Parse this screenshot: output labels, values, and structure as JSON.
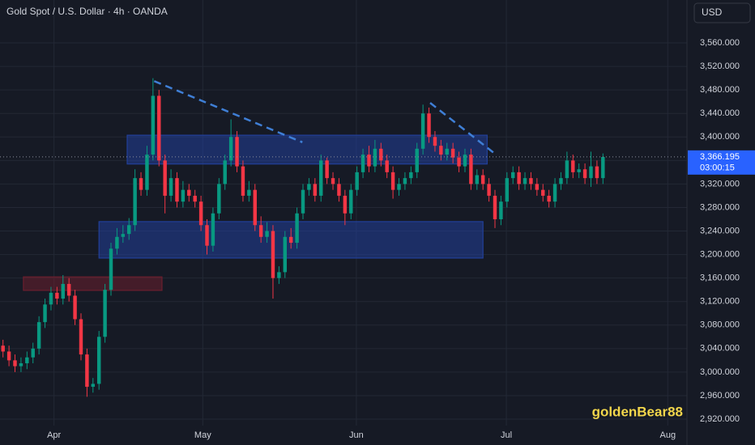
{
  "chart_data": {
    "type": "candlestick",
    "title": "Gold Spot / U.S. Dollar · 4h · OANDA",
    "currency": "USD",
    "watermark": "goldenBear88",
    "open": [
      3045,
      3035,
      3020,
      3010,
      3015,
      3025,
      3040,
      3085,
      3115,
      3135,
      3125,
      3150,
      3130,
      3090,
      3030,
      2975,
      2980,
      3060,
      3140,
      3210,
      3230,
      3235,
      3250,
      3330,
      3310,
      3370,
      3470,
      3360,
      3300,
      3330,
      3290,
      3310,
      3300,
      3290,
      3250,
      3215,
      3270,
      3320,
      3360,
      3400,
      3350,
      3300,
      3310,
      3250,
      3230,
      3240,
      3160,
      3170,
      3230,
      3220,
      3270,
      3310,
      3320,
      3300,
      3360,
      3330,
      3320,
      3300,
      3270,
      3310,
      3340,
      3370,
      3350,
      3380,
      3360,
      3340,
      3310,
      3320,
      3330,
      3340,
      3380,
      3440,
      3400,
      3385,
      3370,
      3380,
      3365,
      3350,
      3370,
      3320,
      3335,
      3320,
      3300,
      3260,
      3290,
      3330,
      3340,
      3320,
      3330,
      3320,
      3310,
      3300,
      3290,
      3320,
      3330,
      3360,
      3340,
      3345,
      3330,
      3350,
      3330
    ],
    "high": [
      3055,
      3045,
      3030,
      3025,
      3035,
      3050,
      3095,
      3125,
      3145,
      3145,
      3165,
      3160,
      3140,
      3100,
      3040,
      2990,
      3070,
      3150,
      3220,
      3245,
      3250,
      3262,
      3345,
      3340,
      3385,
      3500,
      3480,
      3370,
      3345,
      3340,
      3325,
      3320,
      3310,
      3300,
      3260,
      3280,
      3330,
      3370,
      3430,
      3410,
      3360,
      3325,
      3320,
      3265,
      3255,
      3250,
      3180,
      3240,
      3245,
      3280,
      3320,
      3330,
      3330,
      3370,
      3365,
      3340,
      3330,
      3310,
      3320,
      3350,
      3380,
      3385,
      3395,
      3390,
      3370,
      3350,
      3330,
      3340,
      3350,
      3390,
      3455,
      3450,
      3410,
      3395,
      3390,
      3390,
      3375,
      3380,
      3380,
      3345,
      3345,
      3330,
      3310,
      3300,
      3340,
      3350,
      3350,
      3340,
      3340,
      3330,
      3320,
      3310,
      3330,
      3340,
      3375,
      3370,
      3355,
      3355,
      3375,
      3360,
      3372
    ],
    "low": [
      3025,
      3010,
      3000,
      3000,
      3005,
      3015,
      3030,
      3075,
      3105,
      3115,
      3115,
      3120,
      3080,
      3020,
      2958,
      2965,
      2970,
      3050,
      3130,
      3200,
      3220,
      3225,
      3240,
      3300,
      3300,
      3360,
      3350,
      3270,
      3290,
      3280,
      3280,
      3290,
      3280,
      3240,
      3200,
      3205,
      3260,
      3310,
      3350,
      3340,
      3290,
      3290,
      3240,
      3220,
      3220,
      3125,
      3150,
      3160,
      3210,
      3210,
      3260,
      3300,
      3290,
      3290,
      3320,
      3310,
      3290,
      3250,
      3260,
      3300,
      3330,
      3340,
      3340,
      3350,
      3330,
      3295,
      3300,
      3310,
      3320,
      3330,
      3370,
      3390,
      3375,
      3360,
      3360,
      3355,
      3340,
      3340,
      3310,
      3310,
      3310,
      3290,
      3245,
      3250,
      3280,
      3320,
      3310,
      3310,
      3310,
      3300,
      3290,
      3280,
      3280,
      3310,
      3320,
      3330,
      3330,
      3320,
      3315,
      3320,
      3320
    ],
    "close": [
      3035,
      3020,
      3010,
      3015,
      3025,
      3040,
      3085,
      3115,
      3135,
      3125,
      3150,
      3130,
      3090,
      3030,
      2975,
      2980,
      3060,
      3140,
      3210,
      3230,
      3235,
      3250,
      3330,
      3310,
      3370,
      3470,
      3360,
      3300,
      3330,
      3290,
      3310,
      3300,
      3290,
      3250,
      3215,
      3270,
      3320,
      3360,
      3400,
      3350,
      3300,
      3310,
      3250,
      3230,
      3240,
      3160,
      3170,
      3230,
      3220,
      3270,
      3310,
      3320,
      3300,
      3360,
      3330,
      3320,
      3300,
      3270,
      3310,
      3340,
      3370,
      3350,
      3380,
      3360,
      3340,
      3310,
      3320,
      3330,
      3340,
      3380,
      3440,
      3400,
      3385,
      3370,
      3380,
      3365,
      3350,
      3370,
      3320,
      3335,
      3320,
      3300,
      3260,
      3290,
      3330,
      3340,
      3320,
      3330,
      3320,
      3310,
      3300,
      3290,
      3320,
      3330,
      3360,
      3340,
      3345,
      3330,
      3350,
      3330,
      3366
    ],
    "up_color": "#089981",
    "down_color": "#f23645",
    "xlim": [
      -0.5,
      114
    ],
    "xticks": [
      {
        "value": 8.5,
        "label": "Apr"
      },
      {
        "value": 33.3,
        "label": "May"
      },
      {
        "value": 58.9,
        "label": "Jun"
      },
      {
        "value": 83.9,
        "label": "Jul"
      },
      {
        "value": 110.8,
        "label": "Aug"
      }
    ],
    "ylim": [
      2909,
      3633
    ],
    "yticks": [
      {
        "value": 2920,
        "label": "2,920.000"
      },
      {
        "value": 2960,
        "label": "2,960.000"
      },
      {
        "value": 3000,
        "label": "3,000.000"
      },
      {
        "value": 3040,
        "label": "3,040.000"
      },
      {
        "value": 3080,
        "label": "3,080.000"
      },
      {
        "value": 3120,
        "label": "3,120.000"
      },
      {
        "value": 3160,
        "label": "3,160.000"
      },
      {
        "value": 3200,
        "label": "3,200.000"
      },
      {
        "value": 3240,
        "label": "3,240.000"
      },
      {
        "value": 3280,
        "label": "3,280.000"
      },
      {
        "value": 3320,
        "label": "3,320.000"
      },
      {
        "value": 3360,
        "label": "3,360.000"
      },
      {
        "value": 3400,
        "label": "3,400.000"
      },
      {
        "value": 3440,
        "label": "3,440.000"
      },
      {
        "value": 3480,
        "label": "3,480.000"
      },
      {
        "value": 3520,
        "label": "3,520.000"
      },
      {
        "value": 3560,
        "label": "3,560.000"
      }
    ],
    "grid": true,
    "last_price": {
      "value": 3366.195,
      "label": "3,366.195"
    },
    "countdown": "03:00:15",
    "zones": [
      {
        "x": [
          20.7,
          80.7
        ],
        "y": [
          3354,
          3403
        ],
        "color": "#22409a"
      },
      {
        "x": [
          16.0,
          80.0
        ],
        "y": [
          3194,
          3256
        ],
        "color": "#22409a"
      },
      {
        "x": [
          3.4,
          26.5
        ],
        "y": [
          3139,
          3162
        ],
        "color": "#6b1f2e"
      }
    ],
    "trend_lines": [
      {
        "x": [
          25.2,
          49.9
        ],
        "y": [
          3495,
          3391
        ],
        "color": "#3f7fd6"
      },
      {
        "x": [
          71.2,
          82.3
        ],
        "y": [
          3458,
          3369
        ],
        "color": "#3f7fd6"
      }
    ]
  }
}
